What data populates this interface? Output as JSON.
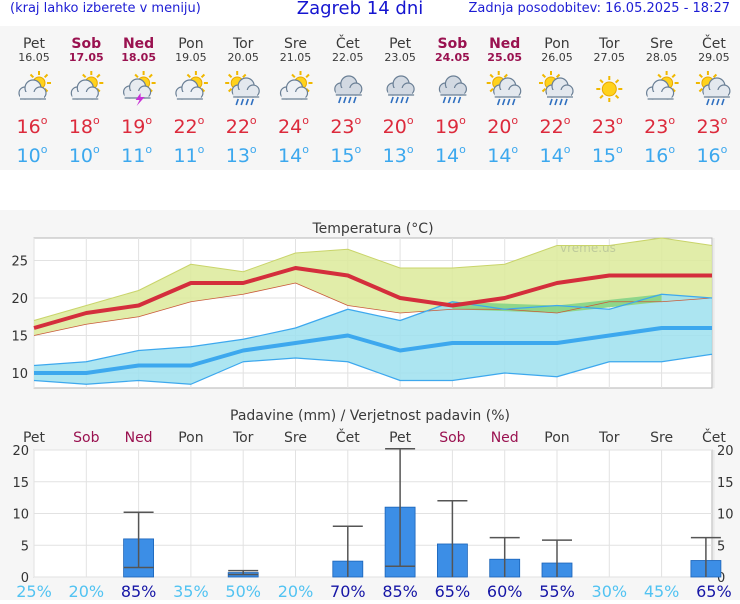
{
  "header": {
    "menu_hint": "(kraj lahko izberete v meniju)",
    "title": "Zagreb 14 dni",
    "updated": "Zadnja posodobitev: 16.05.2025 - 18:27"
  },
  "days": [
    {
      "name": "Pet",
      "date": "16.05",
      "weekend": false,
      "icon": "partly-cloudy-sun-icon",
      "tmax": 16,
      "tmin": 10
    },
    {
      "name": "Sob",
      "date": "17.05",
      "weekend": true,
      "icon": "partly-cloudy-sun-icon",
      "tmax": 18,
      "tmin": 10
    },
    {
      "name": "Ned",
      "date": "18.05",
      "weekend": true,
      "icon": "thunderstorm-sun-icon",
      "tmax": 19,
      "tmin": 11
    },
    {
      "name": "Pon",
      "date": "19.05",
      "weekend": false,
      "icon": "partly-cloudy-sun-icon",
      "tmax": 22,
      "tmin": 11
    },
    {
      "name": "Tor",
      "date": "20.05",
      "weekend": false,
      "icon": "sun-cloud-rain-icon",
      "tmax": 22,
      "tmin": 13
    },
    {
      "name": "Sre",
      "date": "21.05",
      "weekend": false,
      "icon": "partly-cloudy-sun-icon",
      "tmax": 24,
      "tmin": 14
    },
    {
      "name": "Čet",
      "date": "22.05",
      "weekend": false,
      "icon": "cloud-rain-icon",
      "tmax": 23,
      "tmin": 15
    },
    {
      "name": "Pet",
      "date": "23.05",
      "weekend": false,
      "icon": "cloud-rain-icon",
      "tmax": 20,
      "tmin": 13
    },
    {
      "name": "Sob",
      "date": "24.05",
      "weekend": true,
      "icon": "cloud-rain-icon",
      "tmax": 19,
      "tmin": 14
    },
    {
      "name": "Ned",
      "date": "25.05",
      "weekend": true,
      "icon": "sun-cloud-rain-icon",
      "tmax": 20,
      "tmin": 14
    },
    {
      "name": "Pon",
      "date": "26.05",
      "weekend": false,
      "icon": "sun-cloud-rain-icon",
      "tmax": 22,
      "tmin": 14
    },
    {
      "name": "Tor",
      "date": "27.05",
      "weekend": false,
      "icon": "sun-icon",
      "tmax": 23,
      "tmin": 15
    },
    {
      "name": "Sre",
      "date": "28.05",
      "weekend": false,
      "icon": "partly-cloudy-sun-icon",
      "tmax": 23,
      "tmin": 16
    },
    {
      "name": "Čet",
      "date": "29.05",
      "weekend": false,
      "icon": "sun-cloud-rain-icon",
      "tmax": 23,
      "tmin": 16
    }
  ],
  "chart_data": [
    {
      "type": "line",
      "title": "Temperatura (°C)",
      "watermark": "vreme.us",
      "ylim": [
        8,
        28
      ],
      "yticks": [
        10,
        15,
        20,
        25
      ],
      "grid": true,
      "series": [
        {
          "values": [
            16,
            18,
            19,
            22,
            22,
            24,
            23,
            20,
            19,
            20,
            22,
            23,
            23,
            23
          ]
        },
        {
          "values": [
            17,
            19,
            21,
            24.5,
            23.5,
            26,
            26.5,
            24,
            24,
            24.5,
            27,
            27,
            28,
            27
          ]
        },
        {
          "values": [
            15,
            16.5,
            17.5,
            19.5,
            20.5,
            22,
            19,
            18,
            18.5,
            18.5,
            18,
            19.5,
            19.5,
            20
          ]
        },
        {
          "values": [
            10,
            10,
            11,
            11,
            13,
            14,
            15,
            13,
            14,
            14,
            14,
            15,
            16,
            16
          ]
        },
        {
          "values": [
            11,
            11.5,
            13,
            13.5,
            14.5,
            16,
            18.5,
            17,
            19.5,
            18.5,
            19,
            18.5,
            20.5,
            20
          ]
        },
        {
          "values": [
            9,
            8.5,
            9,
            8.5,
            11.5,
            12,
            11.5,
            9,
            9,
            10,
            9.5,
            11.5,
            11.5,
            12.5
          ]
        }
      ],
      "colors": {
        "tmax": "#d42e3c",
        "tmax_band": "#dcea9a",
        "tmin": "#3da8ee",
        "tmin_band": "#9ee1ef",
        "overlap": "#8ed68a"
      }
    },
    {
      "type": "bar",
      "title": "Padavine (mm) / Verjetnost padavin (%)",
      "ylim": [
        0,
        20
      ],
      "yticks": [
        0,
        5,
        10,
        15,
        20
      ],
      "grid": true,
      "values": [
        0,
        0,
        6,
        0,
        0.7,
        0,
        2.5,
        11,
        5.2,
        2.8,
        2.2,
        0,
        0,
        2.6
      ],
      "error_high": [
        0,
        0,
        10.2,
        0,
        1,
        0,
        8,
        20.2,
        12,
        6.2,
        5.8,
        0,
        0,
        6.2
      ],
      "error_low": [
        0,
        0,
        1.5,
        0,
        0.4,
        0,
        0,
        1.7,
        0,
        0,
        0,
        0,
        0,
        0
      ],
      "probability": [
        "25%",
        "20%",
        "85%",
        "35%",
        "50%",
        "20%",
        "70%",
        "85%",
        "65%",
        "60%",
        "55%",
        "30%",
        "45%",
        "65%"
      ],
      "probability_high": [
        false,
        false,
        true,
        false,
        false,
        false,
        true,
        true,
        true,
        true,
        true,
        false,
        false,
        true
      ],
      "colors": {
        "bar": "#3c8ee6",
        "bar_edge": "#1a63b8",
        "error": "#555555",
        "prob_high": "#1616a6",
        "prob_low": "#52c3f2"
      }
    }
  ]
}
